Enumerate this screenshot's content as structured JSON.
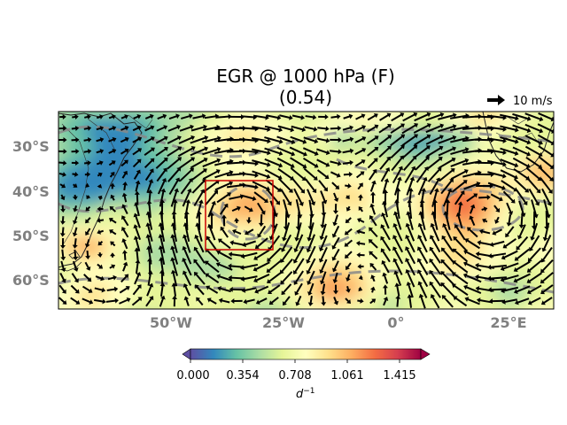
{
  "title": {
    "line1": "EGR @ 1000 hPa (F)",
    "line2": "(0.54)"
  },
  "reference_vector": {
    "label": "10 m/s"
  },
  "axes": {
    "lat_labels": [
      "30°S",
      "40°S",
      "50°S",
      "60°S"
    ],
    "lon_labels": [
      "50°W",
      "25°W",
      "0°",
      "25°E"
    ]
  },
  "colorbar": {
    "ticks": [
      "0.000",
      "0.354",
      "0.708",
      "1.061",
      "1.415"
    ],
    "unit": "d",
    "unit_exp": "−1",
    "colormap": "Spectral_r",
    "colors": [
      "#5e4fa2",
      "#3288bd",
      "#66c2a5",
      "#abdda4",
      "#e6f598",
      "#ffffbf",
      "#fee08b",
      "#fdae61",
      "#f46d43",
      "#d53e4f",
      "#9e0142"
    ]
  },
  "region_box_color": "#cc0000"
}
